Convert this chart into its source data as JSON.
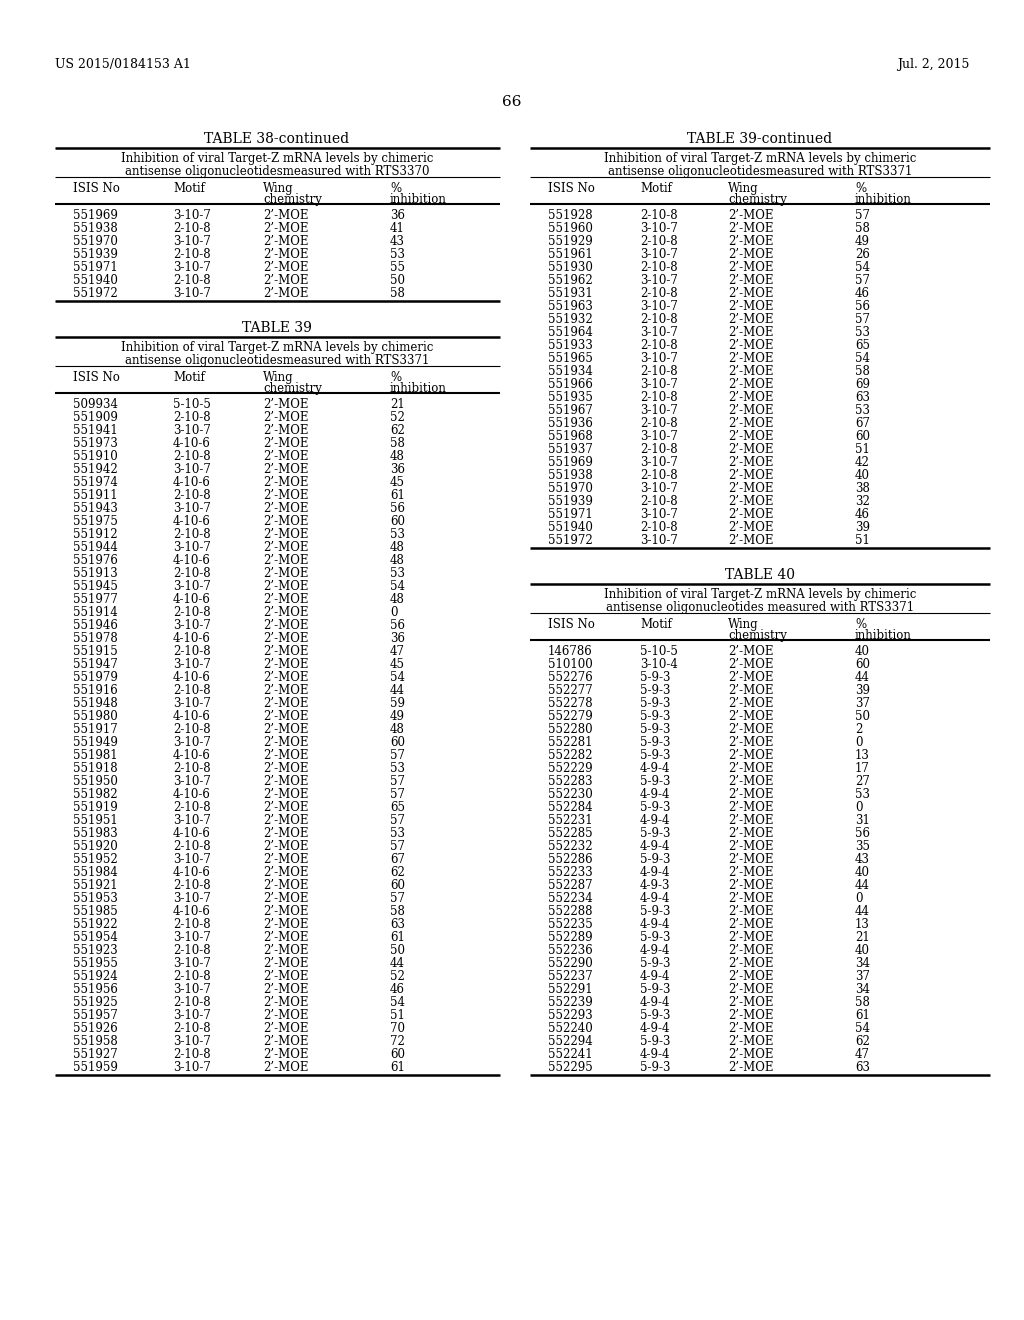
{
  "header_left": "US 2015/0184153 A1",
  "header_right": "Jul. 2, 2015",
  "page_number": "66",
  "table38_continued_title": "TABLE 38-continued",
  "table38_subtitle": "Inhibition of viral Target-Z mRNA levels by chimeric\nantisense oligonucleotidesmeasured with RTS3370",
  "table38_data": [
    [
      "551969",
      "3-10-7",
      "2’-MOE",
      "36"
    ],
    [
      "551938",
      "2-10-8",
      "2’-MOE",
      "41"
    ],
    [
      "551970",
      "3-10-7",
      "2’-MOE",
      "43"
    ],
    [
      "551939",
      "2-10-8",
      "2’-MOE",
      "53"
    ],
    [
      "551971",
      "3-10-7",
      "2’-MOE",
      "55"
    ],
    [
      "551940",
      "2-10-8",
      "2’-MOE",
      "50"
    ],
    [
      "551972",
      "3-10-7",
      "2’-MOE",
      "58"
    ]
  ],
  "table39_title": "TABLE 39",
  "table39_subtitle": "Inhibition of viral Target-Z mRNA levels by chimeric\nantisense oligonucleotidesmeasured with RTS3371",
  "table39_data": [
    [
      "509934",
      "5-10-5",
      "2’-MOE",
      "21"
    ],
    [
      "551909",
      "2-10-8",
      "2’-MOE",
      "52"
    ],
    [
      "551941",
      "3-10-7",
      "2’-MOE",
      "62"
    ],
    [
      "551973",
      "4-10-6",
      "2’-MOE",
      "58"
    ],
    [
      "551910",
      "2-10-8",
      "2’-MOE",
      "48"
    ],
    [
      "551942",
      "3-10-7",
      "2’-MOE",
      "36"
    ],
    [
      "551974",
      "4-10-6",
      "2’-MOE",
      "45"
    ],
    [
      "551911",
      "2-10-8",
      "2’-MOE",
      "61"
    ],
    [
      "551943",
      "3-10-7",
      "2’-MOE",
      "56"
    ],
    [
      "551975",
      "4-10-6",
      "2’-MOE",
      "60"
    ],
    [
      "551912",
      "2-10-8",
      "2’-MOE",
      "53"
    ],
    [
      "551944",
      "3-10-7",
      "2’-MOE",
      "48"
    ],
    [
      "551976",
      "4-10-6",
      "2’-MOE",
      "48"
    ],
    [
      "551913",
      "2-10-8",
      "2’-MOE",
      "53"
    ],
    [
      "551945",
      "3-10-7",
      "2’-MOE",
      "54"
    ],
    [
      "551977",
      "4-10-6",
      "2’-MOE",
      "48"
    ],
    [
      "551914",
      "2-10-8",
      "2’-MOE",
      "0"
    ],
    [
      "551946",
      "3-10-7",
      "2’-MOE",
      "56"
    ],
    [
      "551978",
      "4-10-6",
      "2’-MOE",
      "36"
    ],
    [
      "551915",
      "2-10-8",
      "2’-MOE",
      "47"
    ],
    [
      "551947",
      "3-10-7",
      "2’-MOE",
      "45"
    ],
    [
      "551979",
      "4-10-6",
      "2’-MOE",
      "54"
    ],
    [
      "551916",
      "2-10-8",
      "2’-MOE",
      "44"
    ],
    [
      "551948",
      "3-10-7",
      "2’-MOE",
      "59"
    ],
    [
      "551980",
      "4-10-6",
      "2’-MOE",
      "49"
    ],
    [
      "551917",
      "2-10-8",
      "2’-MOE",
      "48"
    ],
    [
      "551949",
      "3-10-7",
      "2’-MOE",
      "60"
    ],
    [
      "551981",
      "4-10-6",
      "2’-MOE",
      "57"
    ],
    [
      "551918",
      "2-10-8",
      "2’-MOE",
      "53"
    ],
    [
      "551950",
      "3-10-7",
      "2’-MOE",
      "57"
    ],
    [
      "551982",
      "4-10-6",
      "2’-MOE",
      "57"
    ],
    [
      "551919",
      "2-10-8",
      "2’-MOE",
      "65"
    ],
    [
      "551951",
      "3-10-7",
      "2’-MOE",
      "57"
    ],
    [
      "551983",
      "4-10-6",
      "2’-MOE",
      "53"
    ],
    [
      "551920",
      "2-10-8",
      "2’-MOE",
      "57"
    ],
    [
      "551952",
      "3-10-7",
      "2’-MOE",
      "67"
    ],
    [
      "551984",
      "4-10-6",
      "2’-MOE",
      "62"
    ],
    [
      "551921",
      "2-10-8",
      "2’-MOE",
      "60"
    ],
    [
      "551953",
      "3-10-7",
      "2’-MOE",
      "57"
    ],
    [
      "551985",
      "4-10-6",
      "2’-MOE",
      "58"
    ],
    [
      "551922",
      "2-10-8",
      "2’-MOE",
      "63"
    ],
    [
      "551954",
      "3-10-7",
      "2’-MOE",
      "61"
    ],
    [
      "551923",
      "2-10-8",
      "2’-MOE",
      "50"
    ],
    [
      "551955",
      "3-10-7",
      "2’-MOE",
      "44"
    ],
    [
      "551924",
      "2-10-8",
      "2’-MOE",
      "52"
    ],
    [
      "551956",
      "3-10-7",
      "2’-MOE",
      "46"
    ],
    [
      "551925",
      "2-10-8",
      "2’-MOE",
      "54"
    ],
    [
      "551957",
      "3-10-7",
      "2’-MOE",
      "51"
    ],
    [
      "551926",
      "2-10-8",
      "2’-MOE",
      "70"
    ],
    [
      "551958",
      "3-10-7",
      "2’-MOE",
      "72"
    ],
    [
      "551927",
      "2-10-8",
      "2’-MOE",
      "60"
    ],
    [
      "551959",
      "3-10-7",
      "2’-MOE",
      "61"
    ]
  ],
  "table39_continued_title": "TABLE 39-continued",
  "table39_continued_subtitle": "Inhibition of viral Target-Z mRNA levels by chimeric\nantisense oligonucleotidesmeasured with RTS3371",
  "table39_continued_data": [
    [
      "551928",
      "2-10-8",
      "2’-MOE",
      "57"
    ],
    [
      "551960",
      "3-10-7",
      "2’-MOE",
      "58"
    ],
    [
      "551929",
      "2-10-8",
      "2’-MOE",
      "49"
    ],
    [
      "551961",
      "3-10-7",
      "2’-MOE",
      "26"
    ],
    [
      "551930",
      "2-10-8",
      "2’-MOE",
      "54"
    ],
    [
      "551962",
      "3-10-7",
      "2’-MOE",
      "57"
    ],
    [
      "551931",
      "2-10-8",
      "2’-MOE",
      "46"
    ],
    [
      "551963",
      "3-10-7",
      "2’-MOE",
      "56"
    ],
    [
      "551932",
      "2-10-8",
      "2’-MOE",
      "57"
    ],
    [
      "551964",
      "3-10-7",
      "2’-MOE",
      "53"
    ],
    [
      "551933",
      "2-10-8",
      "2’-MOE",
      "65"
    ],
    [
      "551965",
      "3-10-7",
      "2’-MOE",
      "54"
    ],
    [
      "551934",
      "2-10-8",
      "2’-MOE",
      "58"
    ],
    [
      "551966",
      "3-10-7",
      "2’-MOE",
      "69"
    ],
    [
      "551935",
      "2-10-8",
      "2’-MOE",
      "63"
    ],
    [
      "551967",
      "3-10-7",
      "2’-MOE",
      "53"
    ],
    [
      "551936",
      "2-10-8",
      "2’-MOE",
      "67"
    ],
    [
      "551968",
      "3-10-7",
      "2’-MOE",
      "60"
    ],
    [
      "551937",
      "2-10-8",
      "2’-MOE",
      "51"
    ],
    [
      "551969",
      "3-10-7",
      "2’-MOE",
      "42"
    ],
    [
      "551938",
      "2-10-8",
      "2’-MOE",
      "40"
    ],
    [
      "551970",
      "3-10-7",
      "2’-MOE",
      "38"
    ],
    [
      "551939",
      "2-10-8",
      "2’-MOE",
      "32"
    ],
    [
      "551971",
      "3-10-7",
      "2’-MOE",
      "46"
    ],
    [
      "551940",
      "2-10-8",
      "2’-MOE",
      "39"
    ],
    [
      "551972",
      "3-10-7",
      "2’-MOE",
      "51"
    ]
  ],
  "table40_title": "TABLE 40",
  "table40_subtitle": "Inhibition of viral Target-Z mRNA levels by chimeric\nantisense oligonucleotides measured with RTS3371",
  "table40_data": [
    [
      "146786",
      "5-10-5",
      "2’-MOE",
      "40"
    ],
    [
      "510100",
      "3-10-4",
      "2’-MOE",
      "60"
    ],
    [
      "552276",
      "5-9-3",
      "2’-MOE",
      "44"
    ],
    [
      "552277",
      "5-9-3",
      "2’-MOE",
      "39"
    ],
    [
      "552278",
      "5-9-3",
      "2’-MOE",
      "37"
    ],
    [
      "552279",
      "5-9-3",
      "2’-MOE",
      "50"
    ],
    [
      "552280",
      "5-9-3",
      "2’-MOE",
      "2"
    ],
    [
      "552281",
      "5-9-3",
      "2’-MOE",
      "0"
    ],
    [
      "552282",
      "5-9-3",
      "2’-MOE",
      "13"
    ],
    [
      "552229",
      "4-9-4",
      "2’-MOE",
      "17"
    ],
    [
      "552283",
      "5-9-3",
      "2’-MOE",
      "27"
    ],
    [
      "552230",
      "4-9-4",
      "2’-MOE",
      "53"
    ],
    [
      "552284",
      "5-9-3",
      "2’-MOE",
      "0"
    ],
    [
      "552231",
      "4-9-4",
      "2’-MOE",
      "31"
    ],
    [
      "552285",
      "5-9-3",
      "2’-MOE",
      "56"
    ],
    [
      "552232",
      "4-9-4",
      "2’-MOE",
      "35"
    ],
    [
      "552286",
      "5-9-3",
      "2’-MOE",
      "43"
    ],
    [
      "552233",
      "4-9-4",
      "2’-MOE",
      "40"
    ],
    [
      "552287",
      "4-9-3",
      "2’-MOE",
      "44"
    ],
    [
      "552234",
      "4-9-4",
      "2’-MOE",
      "0"
    ],
    [
      "552288",
      "5-9-3",
      "2’-MOE",
      "44"
    ],
    [
      "552235",
      "4-9-4",
      "2’-MOE",
      "13"
    ],
    [
      "552289",
      "5-9-3",
      "2’-MOE",
      "21"
    ],
    [
      "552236",
      "4-9-4",
      "2’-MOE",
      "40"
    ],
    [
      "552290",
      "5-9-3",
      "2’-MOE",
      "34"
    ],
    [
      "552237",
      "4-9-4",
      "2’-MOE",
      "37"
    ],
    [
      "552291",
      "5-9-3",
      "2’-MOE",
      "34"
    ],
    [
      "552239",
      "4-9-4",
      "2’-MOE",
      "58"
    ],
    [
      "552293",
      "5-9-3",
      "2’-MOE",
      "61"
    ],
    [
      "552240",
      "4-9-4",
      "2’-MOE",
      "54"
    ],
    [
      "552294",
      "5-9-3",
      "2’-MOE",
      "62"
    ],
    [
      "552241",
      "4-9-4",
      "2’-MOE",
      "47"
    ],
    [
      "552295",
      "5-9-3",
      "2’-MOE",
      "63"
    ]
  ]
}
